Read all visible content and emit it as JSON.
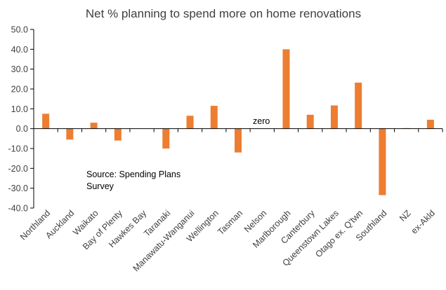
{
  "chart_data": {
    "type": "bar",
    "title": "Net % planning to spend more on home renovations",
    "xlabel": "",
    "ylabel": "",
    "ylim": [
      -40,
      50
    ],
    "yticks": [
      "50.0",
      "40.0",
      "30.0",
      "20.0",
      "10.0",
      "0.0",
      "-10.0",
      "-20.0",
      "-30.0",
      "-40.0"
    ],
    "ytick_values": [
      50,
      40,
      30,
      20,
      10,
      0,
      -10,
      -20,
      -30,
      -40
    ],
    "categories": [
      "Northland",
      "Auckland",
      "Waikato",
      "Bay of Plenty",
      "Hawkes Bay",
      "Taranaki",
      "Manawatu-Wanganui",
      "Wellington",
      "Tasman",
      "Nelson",
      "Marlborough",
      "Canterbury",
      "Queenstown Lakes",
      "Otago ex. Q'twn",
      "Southland",
      "NZ",
      "ex-Akld"
    ],
    "values": [
      7.5,
      -5.5,
      3.0,
      -6.0,
      0.0,
      -10.0,
      6.5,
      11.5,
      -12.0,
      0.0,
      40.0,
      7.0,
      11.7,
      23.2,
      -33.5,
      0.3,
      4.5
    ],
    "bar_color": "#ED7D31",
    "axis_color": "#000000",
    "grid": false,
    "legend": "none",
    "annotations": {
      "zero": "zero",
      "source_line1": "Source: Spending  Plans",
      "source_line2": "Survey"
    }
  }
}
